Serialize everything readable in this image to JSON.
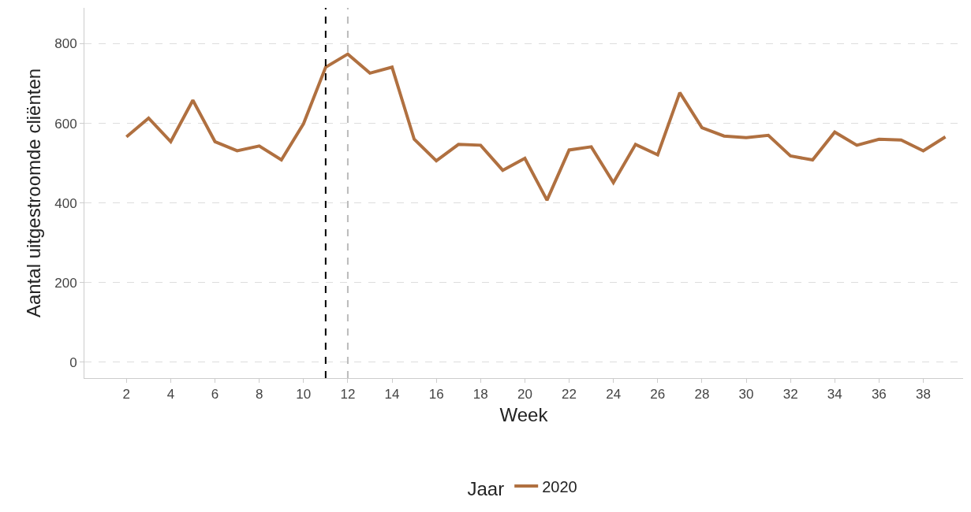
{
  "chart_data": {
    "type": "line",
    "xlabel": "Week",
    "ylabel": "Aantal uitgestroomde cliënten",
    "legend_title": "Jaar",
    "x": [
      2,
      3,
      4,
      5,
      6,
      7,
      8,
      9,
      10,
      11,
      12,
      13,
      14,
      15,
      16,
      17,
      18,
      19,
      20,
      21,
      22,
      23,
      24,
      25,
      26,
      27,
      28,
      29,
      30,
      31,
      32,
      33,
      34,
      35,
      36,
      37,
      38,
      39
    ],
    "series": [
      {
        "name": "2020",
        "color": "#b07040",
        "values": [
          566,
          613,
          554,
          658,
          554,
          531,
          543,
          508,
          599,
          741,
          774,
          726,
          741,
          560,
          506,
          547,
          545,
          482,
          512,
          407,
          533,
          541,
          451,
          547,
          521,
          677,
          589,
          568,
          564,
          570,
          518,
          508,
          578,
          545,
          560,
          558,
          531,
          566
        ]
      }
    ],
    "xlim": [
      0.1,
      39.8
    ],
    "xticks": [
      2,
      4,
      6,
      8,
      10,
      12,
      14,
      16,
      18,
      20,
      22,
      24,
      26,
      28,
      30,
      32,
      34,
      36,
      38
    ],
    "ylim": [
      -40,
      890
    ],
    "yticks": [
      0,
      200,
      400,
      600,
      800
    ],
    "ref_lines": [
      {
        "axis": "x",
        "value": 11,
        "color": "#000000",
        "line_style": "dashed"
      },
      {
        "axis": "x",
        "value": 12,
        "color": "#bbbbbb",
        "line_style": "dashed"
      }
    ],
    "grid": "y",
    "legend": "bottom",
    "marker": "none",
    "line_style": "solid"
  }
}
